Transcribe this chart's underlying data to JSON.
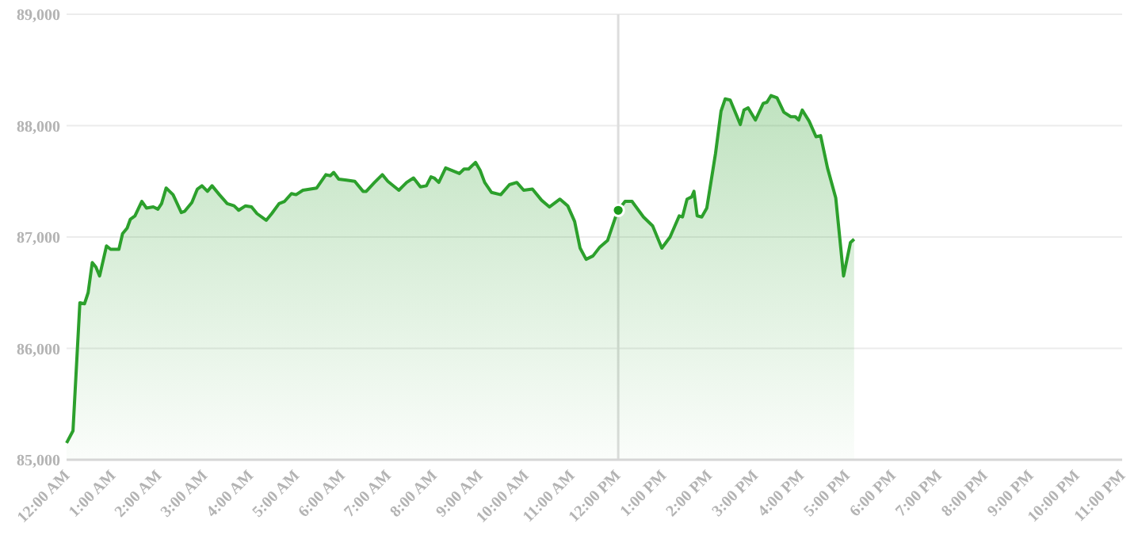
{
  "chart_data": {
    "type": "area",
    "x": [
      0,
      0.14,
      0.29,
      0.39,
      0.47,
      0.56,
      0.64,
      0.72,
      0.87,
      0.96,
      1.14,
      1.22,
      1.32,
      1.39,
      1.49,
      1.64,
      1.74,
      1.89,
      1.99,
      2.07,
      2.17,
      2.32,
      2.5,
      2.57,
      2.73,
      2.85,
      2.95,
      3.07,
      3.17,
      3.33,
      3.5,
      3.65,
      3.75,
      3.9,
      4.03,
      4.15,
      4.35,
      4.47,
      4.63,
      4.75,
      4.9,
      5.0,
      5.15,
      5.45,
      5.65,
      5.75,
      5.82,
      5.93,
      6.1,
      6.28,
      6.46,
      6.53,
      6.71,
      6.88,
      7.0,
      7.24,
      7.41,
      7.56,
      7.71,
      7.84,
      7.94,
      8.01,
      8.11,
      8.26,
      8.56,
      8.66,
      8.76,
      8.91,
      9.01,
      9.11,
      9.26,
      9.46,
      9.65,
      9.81,
      9.96,
      10.15,
      10.35,
      10.52,
      10.75,
      10.92,
      11.07,
      11.19,
      11.32,
      11.47,
      11.62,
      11.79,
      11.97,
      12.02,
      12.17,
      12.32,
      12.57,
      12.77,
      12.97,
      13.15,
      13.35,
      13.42,
      13.52,
      13.62,
      13.67,
      13.74,
      13.84,
      13.95,
      14.14,
      14.26,
      14.35,
      14.46,
      14.68,
      14.76,
      14.85,
      15.01,
      15.18,
      15.26,
      15.35,
      15.48,
      15.63,
      15.78,
      15.88,
      15.95,
      16.03,
      16.18,
      16.33,
      16.43,
      16.58,
      16.76,
      16.93,
      17.08,
      17.16
    ],
    "series": [
      {
        "color": "#2ca02c",
        "values": [
          85150,
          85260,
          86410,
          86400,
          86500,
          86770,
          86730,
          86650,
          86920,
          86890,
          86890,
          87030,
          87080,
          87160,
          87190,
          87320,
          87260,
          87270,
          87250,
          87300,
          87440,
          87380,
          87220,
          87230,
          87310,
          87430,
          87460,
          87410,
          87460,
          87380,
          87300,
          87280,
          87240,
          87280,
          87270,
          87210,
          87150,
          87210,
          87300,
          87320,
          87390,
          87380,
          87420,
          87440,
          87560,
          87550,
          87580,
          87520,
          87510,
          87500,
          87410,
          87410,
          87490,
          87560,
          87500,
          87420,
          87490,
          87530,
          87450,
          87460,
          87540,
          87530,
          87490,
          87620,
          87570,
          87610,
          87610,
          87670,
          87600,
          87490,
          87400,
          87380,
          87470,
          87490,
          87420,
          87430,
          87330,
          87270,
          87340,
          87280,
          87140,
          86900,
          86800,
          86830,
          86910,
          86970,
          87190,
          87240,
          87320,
          87320,
          87180,
          87100,
          86900,
          87000,
          87190,
          87180,
          87340,
          87360,
          87410,
          87190,
          87180,
          87260,
          87750,
          88130,
          88240,
          88230,
          88010,
          88140,
          88160,
          88050,
          88200,
          88210,
          88270,
          88250,
          88120,
          88080,
          88080,
          88050,
          88140,
          88040,
          87900,
          87910,
          87620,
          87350,
          86650,
          86950,
          86980
        ]
      },
      {
        "type": "scatter",
        "color": "#1a9a1a",
        "marker": "circle",
        "x": [
          12.02
        ],
        "values": [
          87240
        ]
      }
    ],
    "xlim": [
      0,
      23
    ],
    "xticks": [
      {
        "value": 0,
        "label": "12:00 AM"
      },
      {
        "value": 1,
        "label": "1:00 AM"
      },
      {
        "value": 2,
        "label": "2:00 AM"
      },
      {
        "value": 3,
        "label": "3:00 AM"
      },
      {
        "value": 4,
        "label": "4:00 AM"
      },
      {
        "value": 5,
        "label": "5:00 AM"
      },
      {
        "value": 6,
        "label": "6:00 AM"
      },
      {
        "value": 7,
        "label": "7:00 AM"
      },
      {
        "value": 8,
        "label": "8:00 AM"
      },
      {
        "value": 9,
        "label": "9:00 AM"
      },
      {
        "value": 10,
        "label": "10:00 AM"
      },
      {
        "value": 11,
        "label": "11:00 AM"
      },
      {
        "value": 12,
        "label": "12:00 PM"
      },
      {
        "value": 13,
        "label": "1:00 PM"
      },
      {
        "value": 14,
        "label": "2:00 PM"
      },
      {
        "value": 15,
        "label": "3:00 PM"
      },
      {
        "value": 16,
        "label": "4:00 PM"
      },
      {
        "value": 17,
        "label": "5:00 PM"
      },
      {
        "value": 18,
        "label": "6:00 PM"
      },
      {
        "value": 19,
        "label": "7:00 PM"
      },
      {
        "value": 20,
        "label": "8:00 PM"
      },
      {
        "value": 21,
        "label": "9:00 PM"
      },
      {
        "value": 22,
        "label": "10:00 PM"
      },
      {
        "value": 23,
        "label": "11:00 PM"
      }
    ],
    "ylim": [
      85000,
      89000
    ],
    "yticks": [
      {
        "value": 85000,
        "label": "85,000"
      },
      {
        "value": 86000,
        "label": "86,000"
      },
      {
        "value": 87000,
        "label": "87,000"
      },
      {
        "value": 88000,
        "label": "88,000"
      },
      {
        "value": 89000,
        "label": "89,000"
      }
    ],
    "grid": "y",
    "ref_lines": [
      {
        "axis": "x",
        "value": 12.02,
        "color": "#dddddd"
      }
    ],
    "line_style": "solid"
  }
}
